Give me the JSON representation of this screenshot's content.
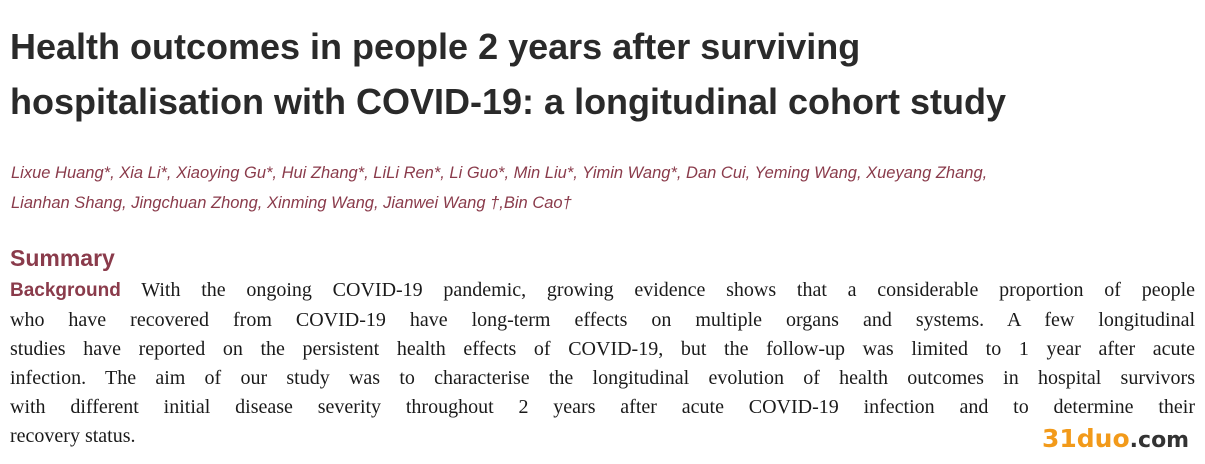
{
  "header": {
    "title_lines": [
      "Health outcomes in people 2 years after surviving",
      "hospitalisation with COVID-19: a longitudinal cohort study"
    ],
    "authors_lines": [
      "Lixue Huang*, Xia Li*, Xiaoying Gu*, Hui Zhang*, LiLi Ren*, Li Guo*, Min Liu*, Yimin Wang*, Dan Cui, Yeming Wang, Xueyang Zhang,",
      "Lianhan Shang, Jingchuan Zhong, Xinming Wang, Jianwei Wang †,Bin Cao†"
    ]
  },
  "summary": {
    "heading": "Summary",
    "background_label": "Background",
    "background_lines": [
      "With the ongoing COVID-19 pandemic, growing evidence shows that a considerable proportion of people",
      "who have recovered from COVID-19 have long-term effects on multiple organs and systems. A few longitudinal",
      "studies have reported on the persistent health effects of COVID-19, but the follow-up was limited to 1 year after acute",
      "infection. The aim of our study was to characterise the longitudinal evolution of health outcomes in hospital survivors",
      "with different initial disease severity throughout 2 years after acute COVID-19 infection and to determine their",
      "recovery status."
    ]
  },
  "watermark": {
    "main": "31duo",
    "suffix": ".com"
  }
}
